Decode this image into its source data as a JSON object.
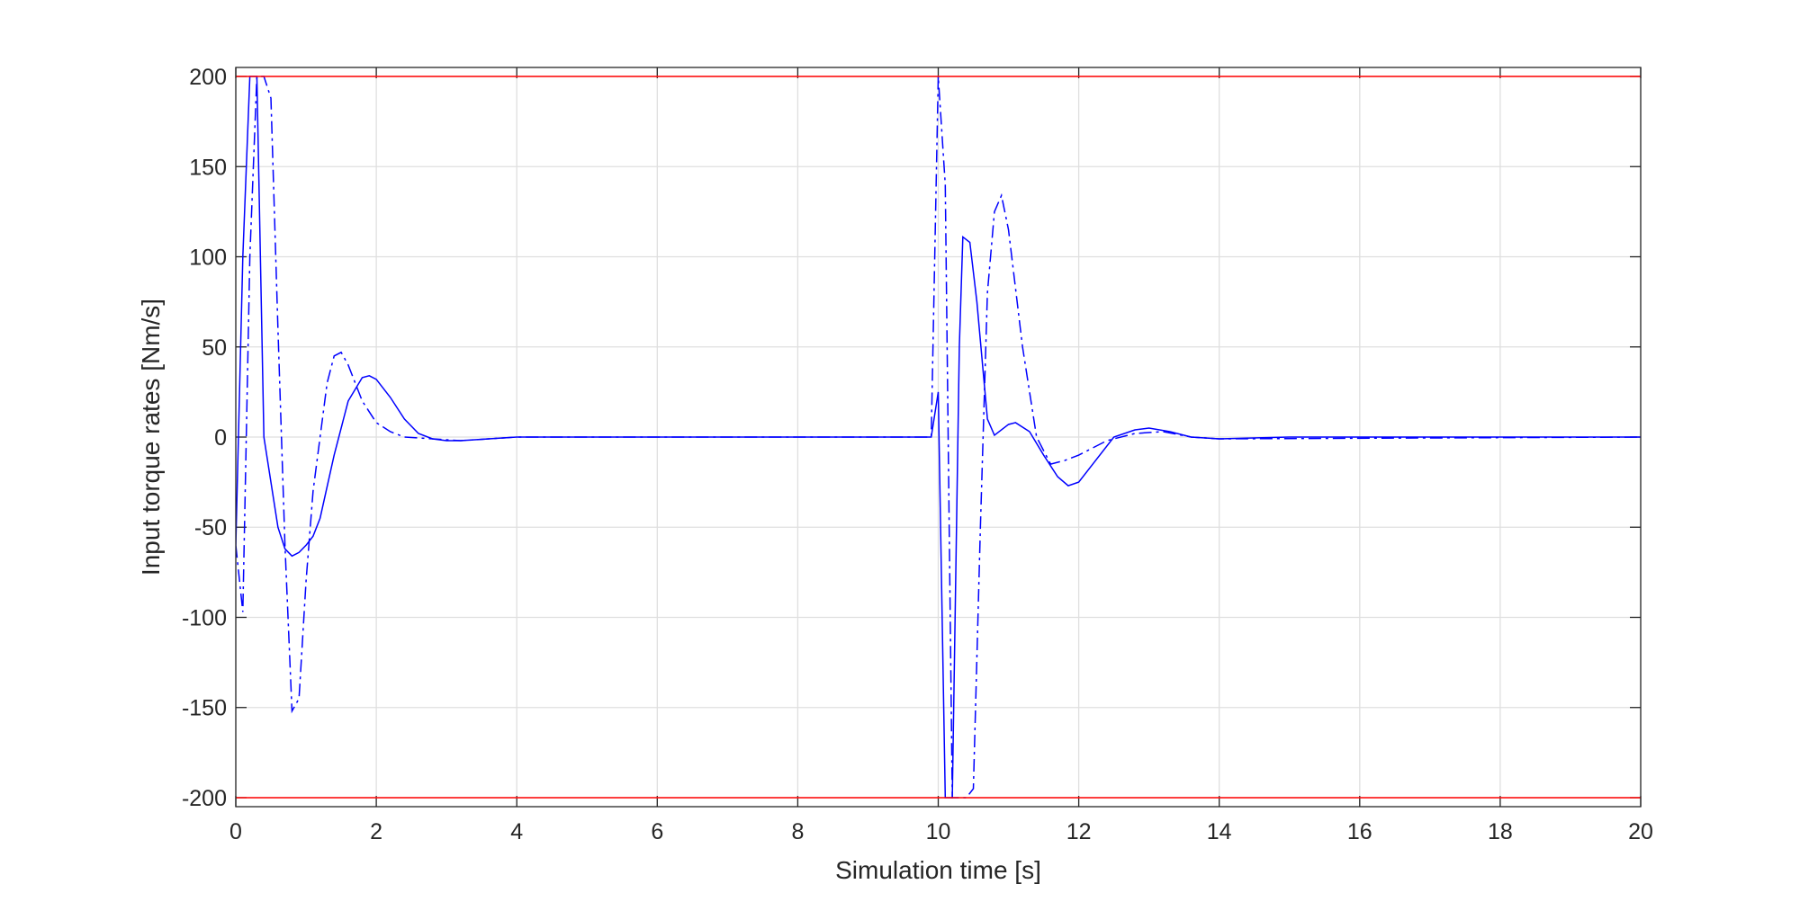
{
  "chart_data": {
    "type": "line",
    "xlabel": "Simulation time [s]",
    "ylabel": "Input torque rates [Nm/s]",
    "xlim": [
      0,
      20
    ],
    "ylim": [
      -205,
      205
    ],
    "xticks": [
      0,
      2,
      4,
      6,
      8,
      10,
      12,
      14,
      16,
      18,
      20
    ],
    "yticks": [
      -200,
      -150,
      -100,
      -50,
      0,
      50,
      100,
      150,
      200
    ],
    "grid": true,
    "series": [
      {
        "color": "#0000ff",
        "line_style": "solid",
        "x": [
          0,
          0.1,
          0.2,
          0.3,
          0.4,
          0.5,
          0.6,
          0.7,
          0.8,
          0.9,
          1.0,
          1.1,
          1.2,
          1.4,
          1.6,
          1.8,
          1.9,
          2.0,
          2.2,
          2.4,
          2.6,
          2.8,
          3.0,
          3.2,
          3.6,
          4.0,
          5,
          9.9,
          10.0,
          10.1,
          10.2,
          10.3,
          10.35,
          10.45,
          10.55,
          10.7,
          10.8,
          11.0,
          11.1,
          11.3,
          11.5,
          11.7,
          11.85,
          12.0,
          12.2,
          12.5,
          12.8,
          13.0,
          13.3,
          13.6,
          14,
          15,
          20
        ],
        "values": [
          -60,
          100,
          200,
          200,
          0,
          -25,
          -50,
          -62,
          -66,
          -64,
          -60,
          -55,
          -45,
          -10,
          20,
          33,
          34,
          32,
          22,
          10,
          2,
          -1,
          -2,
          -2,
          -1,
          0,
          0,
          0,
          25,
          -200,
          -200,
          50,
          111,
          108,
          75,
          10,
          1,
          7,
          8,
          3,
          -10,
          -22,
          -27,
          -25,
          -15,
          0,
          4,
          5,
          3,
          0,
          -1,
          0,
          0
        ]
      },
      {
        "color": "#0000ff",
        "line_style": "dash-dot",
        "x": [
          0,
          0.1,
          0.2,
          0.3,
          0.4,
          0.5,
          0.6,
          0.7,
          0.8,
          0.9,
          1.0,
          1.1,
          1.2,
          1.3,
          1.4,
          1.5,
          1.6,
          1.8,
          2.0,
          2.2,
          2.4,
          2.8,
          3.2,
          3.6,
          4.0,
          9.9,
          10.0,
          10.1,
          10.2,
          10.3,
          10.4,
          10.5,
          10.6,
          10.7,
          10.8,
          10.9,
          11.0,
          11.2,
          11.4,
          11.6,
          11.8,
          12.0,
          12.4,
          12.8,
          13.2,
          13.6,
          14,
          20
        ],
        "values": [
          -60,
          -97,
          100,
          200,
          200,
          188,
          60,
          -60,
          -152,
          -145,
          -80,
          -30,
          0,
          30,
          45,
          47,
          40,
          20,
          8,
          3,
          0,
          -1,
          -2,
          -1,
          0,
          0,
          200,
          140,
          -200,
          -200,
          -200,
          -195,
          -50,
          80,
          125,
          134,
          115,
          50,
          0,
          -15,
          -13,
          -10,
          -2,
          2,
          3,
          0,
          -1,
          0
        ]
      },
      {
        "color": "#ff0000",
        "line_style": "solid",
        "x": [
          0,
          20
        ],
        "values": [
          200,
          200
        ]
      },
      {
        "color": "#ff0000",
        "line_style": "solid",
        "x": [
          0,
          20
        ],
        "values": [
          -200,
          -200
        ]
      }
    ]
  }
}
